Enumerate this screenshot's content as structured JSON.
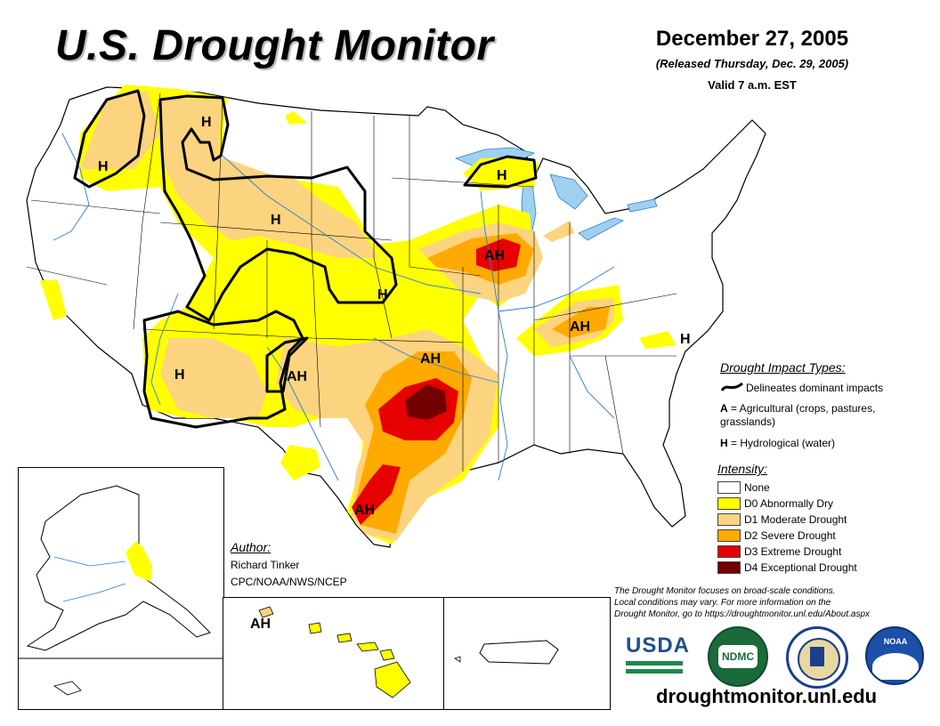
{
  "header": {
    "title": "U.S. Drought Monitor",
    "date": "December 27, 2005",
    "released": "(Released Thursday, Dec. 29, 2005)",
    "valid": "Valid 7 a.m. EST"
  },
  "impact_types": {
    "heading": "Drought Impact Types:",
    "line_desc": "Delineates dominant impacts",
    "a_key": "A",
    "a_desc": " = Agricultural (crops, pastures, grasslands)",
    "h_key": "H",
    "h_desc": " = Hydrological (water)"
  },
  "intensity": {
    "heading": "Intensity:",
    "items": [
      {
        "label": "None",
        "color": "#ffffff"
      },
      {
        "label": "D0 Abnormally Dry",
        "color": "#ffff00"
      },
      {
        "label": "D1 Moderate Drought",
        "color": "#fcd37f"
      },
      {
        "label": "D2 Severe Drought",
        "color": "#ffaa00"
      },
      {
        "label": "D3 Extreme Drought",
        "color": "#e60000"
      },
      {
        "label": "D4 Exceptional Drought",
        "color": "#730000"
      }
    ]
  },
  "author": {
    "heading": "Author:",
    "name": "Richard Tinker",
    "org": "CPC/NOAA/NWS/NCEP"
  },
  "disclaimer": {
    "line1": "The Drought Monitor focuses on broad-scale conditions.",
    "line2": "Local conditions may vary. For more information on the",
    "line3": "Drought Monitor, go to https://droughtmonitor.unl.edu/About.aspx"
  },
  "logos": {
    "usda": "USDA",
    "ndmc": "NDMC",
    "noaa": "NOAA"
  },
  "map_labels": {
    "h_wa": "H",
    "h_mt": "H",
    "h_wy": "H",
    "h_ne": "H",
    "h_wi": "H",
    "h_az": "H",
    "h_va": "H",
    "ah_il": "AH",
    "ah_ar": "AH",
    "ah_nm": "AH",
    "ah_ky": "AH",
    "ah_tx": "AH",
    "ah_hi": "AH"
  },
  "footer": {
    "url": "droughtmonitor.unl.edu"
  }
}
